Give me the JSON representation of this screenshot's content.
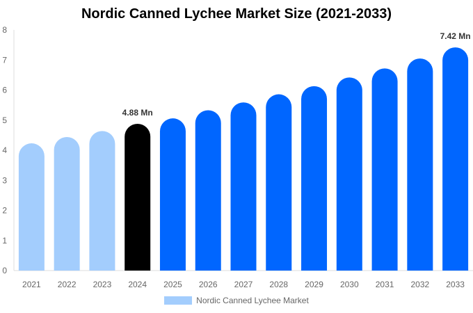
{
  "chart_data": {
    "type": "bar",
    "title": "Nordic Canned Lychee Market Size (2021-2033)",
    "xlabel": "",
    "ylabel": "",
    "ylim": [
      0,
      8
    ],
    "yticks": [
      "0",
      "1",
      "2",
      "3",
      "4",
      "5",
      "6",
      "7",
      "8"
    ],
    "grid": false,
    "legend_placement": "bottom",
    "categories": [
      "2021",
      "2022",
      "2023",
      "2024",
      "2025",
      "2026",
      "2027",
      "2028",
      "2029",
      "2030",
      "2031",
      "2032",
      "2033"
    ],
    "series": [
      {
        "name": "Nordic Canned Lychee Market",
        "values": [
          4.23,
          4.44,
          4.64,
          4.88,
          5.06,
          5.33,
          5.59,
          5.86,
          6.13,
          6.42,
          6.72,
          7.05,
          7.42
        ]
      }
    ],
    "bar_colors": [
      "#a3cdfd",
      "#a3cdfd",
      "#a3cdfd",
      "#000000",
      "#0066ff",
      "#0066ff",
      "#0066ff",
      "#0066ff",
      "#0066ff",
      "#0066ff",
      "#0066ff",
      "#0066ff",
      "#0066ff"
    ],
    "legend_color": "#a3cdfd",
    "annotations": [
      {
        "category": "2024",
        "text": "4.88 Mn"
      },
      {
        "category": "2033",
        "text": "7.42 Mn"
      }
    ]
  }
}
